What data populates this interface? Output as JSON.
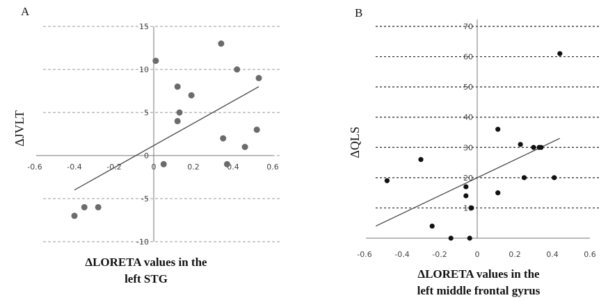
{
  "chart_data": [
    {
      "type": "scatter",
      "panel_label": "A",
      "xlabel_lines": [
        "ΔLORETA  values in the",
        "left STG"
      ],
      "ylabel": "ΔJVLT",
      "xlim": [
        -0.6,
        0.6
      ],
      "ylim": [
        -10,
        15
      ],
      "xticks": [
        -0.6,
        -0.4,
        -0.2,
        0,
        0.2,
        0.4,
        0.6
      ],
      "xtick_labels": [
        "-0.6",
        "-0.4",
        "-0.2",
        "0",
        "0.2",
        "0.4",
        "0.6"
      ],
      "yticks": [
        -10,
        -5,
        0,
        5,
        10,
        15
      ],
      "ytick_labels": [
        "-10",
        "-5",
        "0",
        "5",
        "10",
        "15"
      ],
      "grid": true,
      "marker_color": "#6b6b6b",
      "points": [
        {
          "x": -0.4,
          "y": -7
        },
        {
          "x": -0.35,
          "y": -6
        },
        {
          "x": -0.28,
          "y": -6
        },
        {
          "x": 0.01,
          "y": 11
        },
        {
          "x": 0.05,
          "y": -1
        },
        {
          "x": 0.12,
          "y": 4
        },
        {
          "x": 0.12,
          "y": 8
        },
        {
          "x": 0.13,
          "y": 5
        },
        {
          "x": 0.19,
          "y": 7
        },
        {
          "x": 0.34,
          "y": 13
        },
        {
          "x": 0.35,
          "y": 2
        },
        {
          "x": 0.37,
          "y": -1
        },
        {
          "x": 0.42,
          "y": 10
        },
        {
          "x": 0.46,
          "y": 1
        },
        {
          "x": 0.52,
          "y": 3
        },
        {
          "x": 0.53,
          "y": 9
        }
      ],
      "fit_line": {
        "x": [
          -0.4,
          0.53
        ],
        "y": [
          -4,
          8
        ]
      }
    },
    {
      "type": "scatter",
      "panel_label": "B",
      "xlabel_lines": [
        "ΔLORETA  values in the",
        "left middle frontal gyrus"
      ],
      "ylabel": "ΔQLS",
      "xlim": [
        -0.6,
        0.6
      ],
      "ylim": [
        0,
        70
      ],
      "xticks": [
        -0.6,
        -0.4,
        -0.2,
        0,
        0.2,
        0.4,
        0.6
      ],
      "xtick_labels": [
        "-0.6",
        "-0.4",
        "-0.2",
        "0",
        "0.2",
        "0.4",
        "0.6"
      ],
      "yticks": [
        10,
        20,
        30,
        40,
        50,
        60,
        70
      ],
      "ytick_labels": [
        "10",
        "20",
        "30",
        "40",
        "50",
        "60",
        "70"
      ],
      "grid": true,
      "marker_color": "#111111",
      "points": [
        {
          "x": -0.48,
          "y": 19
        },
        {
          "x": -0.3,
          "y": 26
        },
        {
          "x": -0.24,
          "y": 4
        },
        {
          "x": -0.14,
          "y": 0
        },
        {
          "x": -0.06,
          "y": 17
        },
        {
          "x": -0.06,
          "y": 14
        },
        {
          "x": -0.04,
          "y": 0
        },
        {
          "x": -0.03,
          "y": 10
        },
        {
          "x": 0.11,
          "y": 36
        },
        {
          "x": 0.11,
          "y": 15
        },
        {
          "x": 0.23,
          "y": 31
        },
        {
          "x": 0.25,
          "y": 20
        },
        {
          "x": 0.3,
          "y": 30
        },
        {
          "x": 0.33,
          "y": 30
        },
        {
          "x": 0.34,
          "y": 30
        },
        {
          "x": 0.41,
          "y": 20
        },
        {
          "x": 0.44,
          "y": 61
        }
      ],
      "fit_line": {
        "x": [
          -0.54,
          0.44
        ],
        "y": [
          4,
          33
        ]
      }
    }
  ]
}
